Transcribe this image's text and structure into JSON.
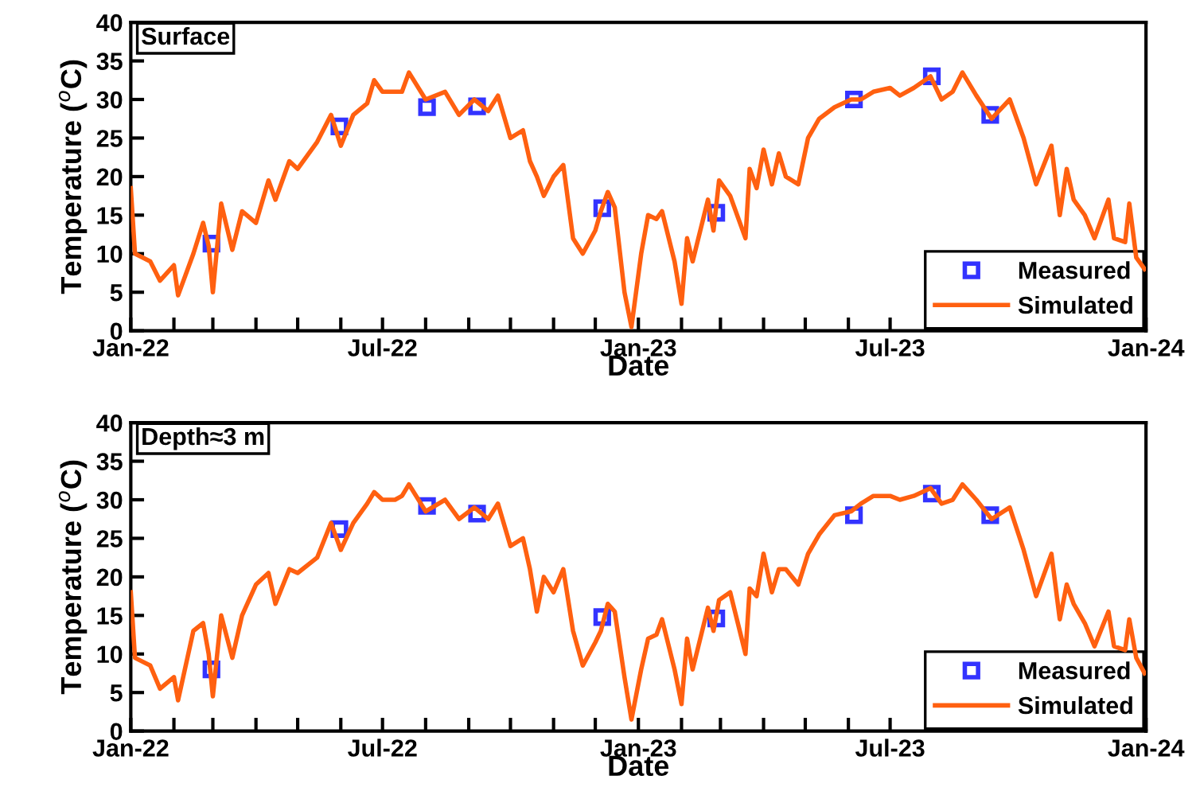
{
  "chart_data": [
    {
      "type": "line",
      "xlabel": "Date",
      "ylabel": "Temperature ($^{o}$C)",
      "annotations": [
        "Surface"
      ],
      "legend": "bottom right",
      "grid": false,
      "xlim": [
        "2022-01-01",
        "2024-01-01"
      ],
      "xticks": [
        {
          "value": "2022-01-01",
          "label": "Jan-22"
        },
        {
          "value": "2022-02-01",
          "label": null
        },
        {
          "value": "2022-03-01",
          "label": null
        },
        {
          "value": "2022-04-01",
          "label": null
        },
        {
          "value": "2022-05-01",
          "label": null
        },
        {
          "value": "2022-06-01",
          "label": null
        },
        {
          "value": "2022-07-01",
          "label": "Jul-22"
        },
        {
          "value": "2022-08-01",
          "label": null
        },
        {
          "value": "2022-09-01",
          "label": null
        },
        {
          "value": "2022-10-01",
          "label": null
        },
        {
          "value": "2022-11-01",
          "label": null
        },
        {
          "value": "2022-12-01",
          "label": null
        },
        {
          "value": "2023-01-01",
          "label": "Jan-23"
        },
        {
          "value": "2023-02-01",
          "label": null
        },
        {
          "value": "2023-03-01",
          "label": null
        },
        {
          "value": "2023-04-01",
          "label": null
        },
        {
          "value": "2023-05-01",
          "label": null
        },
        {
          "value": "2023-06-01",
          "label": null
        },
        {
          "value": "2023-07-01",
          "label": "Jul-23"
        },
        {
          "value": "2023-08-01",
          "label": null
        },
        {
          "value": "2023-09-01",
          "label": null
        },
        {
          "value": "2023-10-01",
          "label": null
        },
        {
          "value": "2023-11-01",
          "label": null
        },
        {
          "value": "2023-12-01",
          "label": null
        },
        {
          "value": "2024-01-01",
          "label": "Jan-24"
        }
      ],
      "ylim": [
        0,
        40
      ],
      "yticks": [
        0,
        5,
        10,
        15,
        20,
        25,
        30,
        35,
        40
      ],
      "series": [
        {
          "name": "Measured",
          "type": "scatter",
          "marker": "square",
          "color": "#3333ff",
          "x": [
            "2022-02-28",
            "2022-05-31",
            "2022-08-02",
            "2022-09-07",
            "2022-12-06",
            "2023-02-26",
            "2023-06-05",
            "2023-07-31",
            "2023-09-11"
          ],
          "values": [
            11.3,
            26.5,
            29.0,
            29.1,
            15.9,
            15.3,
            30.0,
            33.0,
            28.0
          ]
        },
        {
          "name": "Simulated",
          "type": "line",
          "marker": "none",
          "line_style": "solid",
          "color": "#ff6010",
          "x": [
            "2022-01-01",
            "2022-01-04",
            "2022-01-15",
            "2022-01-22",
            "2022-02-01",
            "2022-02-04",
            "2022-02-15",
            "2022-02-22",
            "2022-02-26",
            "2022-03-01",
            "2022-03-07",
            "2022-03-15",
            "2022-03-22",
            "2022-04-01",
            "2022-04-10",
            "2022-04-15",
            "2022-04-25",
            "2022-05-01",
            "2022-05-15",
            "2022-05-25",
            "2022-06-01",
            "2022-06-10",
            "2022-06-20",
            "2022-06-25",
            "2022-07-01",
            "2022-07-10",
            "2022-07-15",
            "2022-07-20",
            "2022-08-01",
            "2022-08-15",
            "2022-08-25",
            "2022-09-05",
            "2022-09-15",
            "2022-09-22",
            "2022-10-01",
            "2022-10-10",
            "2022-10-15",
            "2022-10-20",
            "2022-10-25",
            "2022-11-01",
            "2022-11-08",
            "2022-11-15",
            "2022-11-22",
            "2022-12-01",
            "2022-12-05",
            "2022-12-10",
            "2022-12-15",
            "2022-12-22",
            "2022-12-27",
            "2023-01-03",
            "2023-01-08",
            "2023-01-14",
            "2023-01-18",
            "2023-01-27",
            "2023-02-01",
            "2023-02-05",
            "2023-02-09",
            "2023-02-20",
            "2023-02-24",
            "2023-02-28",
            "2023-03-08",
            "2023-03-19",
            "2023-03-22",
            "2023-03-27",
            "2023-04-01",
            "2023-04-07",
            "2023-04-12",
            "2023-04-17",
            "2023-04-26",
            "2023-05-03",
            "2023-05-11",
            "2023-05-22",
            "2023-06-03",
            "2023-06-10",
            "2023-06-19",
            "2023-07-01",
            "2023-07-08",
            "2023-07-18",
            "2023-07-30",
            "2023-08-07",
            "2023-08-15",
            "2023-08-22",
            "2023-09-01",
            "2023-09-12",
            "2023-09-25",
            "2023-10-05",
            "2023-10-14",
            "2023-10-25",
            "2023-10-31",
            "2023-11-05",
            "2023-11-10",
            "2023-11-18",
            "2023-11-25",
            "2023-12-05",
            "2023-12-09",
            "2023-12-17",
            "2023-12-20",
            "2023-12-25",
            "2023-12-31"
          ],
          "values": [
            18.5,
            10,
            9,
            6.5,
            8.5,
            4.6,
            10,
            14,
            11,
            5,
            16.5,
            10.5,
            15.5,
            14,
            19.5,
            17,
            22,
            21,
            24.5,
            28,
            24,
            28,
            29.5,
            32.5,
            31,
            31,
            31,
            33.5,
            30,
            31,
            28,
            30,
            28.5,
            30.5,
            25,
            26,
            22,
            20,
            17.5,
            20,
            21.5,
            12,
            10,
            13,
            15.5,
            18,
            16,
            5,
            0.5,
            10,
            15,
            14.5,
            15.5,
            9,
            3.5,
            12,
            9,
            17,
            13,
            19.5,
            17.5,
            12,
            21,
            18.5,
            23.5,
            19,
            23,
            20,
            19,
            25,
            27.5,
            29,
            30,
            30,
            31,
            31.5,
            30.5,
            31.5,
            33,
            30,
            31,
            33.5,
            30.5,
            27.5,
            30,
            25,
            19,
            24,
            15,
            21,
            17,
            15,
            12,
            17,
            12,
            11.5,
            16.5,
            9.5,
            8
          ]
        }
      ]
    },
    {
      "type": "line",
      "xlabel": "Date",
      "ylabel": "Temperature ($^{o}$C)",
      "annotations": [
        "Depth≈3 m"
      ],
      "legend": "bottom right",
      "grid": false,
      "xlim": [
        "2022-01-01",
        "2024-01-01"
      ],
      "xticks": [
        {
          "value": "2022-01-01",
          "label": "Jan-22"
        },
        {
          "value": "2022-02-01",
          "label": null
        },
        {
          "value": "2022-03-01",
          "label": null
        },
        {
          "value": "2022-04-01",
          "label": null
        },
        {
          "value": "2022-05-01",
          "label": null
        },
        {
          "value": "2022-06-01",
          "label": null
        },
        {
          "value": "2022-07-01",
          "label": "Jul-22"
        },
        {
          "value": "2022-08-01",
          "label": null
        },
        {
          "value": "2022-09-01",
          "label": null
        },
        {
          "value": "2022-10-01",
          "label": null
        },
        {
          "value": "2022-11-01",
          "label": null
        },
        {
          "value": "2022-12-01",
          "label": null
        },
        {
          "value": "2023-01-01",
          "label": "Jan-23"
        },
        {
          "value": "2023-02-01",
          "label": null
        },
        {
          "value": "2023-03-01",
          "label": null
        },
        {
          "value": "2023-04-01",
          "label": null
        },
        {
          "value": "2023-05-01",
          "label": null
        },
        {
          "value": "2023-06-01",
          "label": null
        },
        {
          "value": "2023-07-01",
          "label": "Jul-23"
        },
        {
          "value": "2023-08-01",
          "label": null
        },
        {
          "value": "2023-09-01",
          "label": null
        },
        {
          "value": "2023-10-01",
          "label": null
        },
        {
          "value": "2023-11-01",
          "label": null
        },
        {
          "value": "2023-12-01",
          "label": null
        },
        {
          "value": "2024-01-01",
          "label": "Jan-24"
        }
      ],
      "ylim": [
        0,
        40
      ],
      "yticks": [
        0,
        5,
        10,
        15,
        20,
        25,
        30,
        35,
        40
      ],
      "series": [
        {
          "name": "Measured",
          "type": "scatter",
          "marker": "square",
          "color": "#3333ff",
          "x": [
            "2022-02-28",
            "2022-05-31",
            "2022-08-02",
            "2022-09-07",
            "2022-12-06",
            "2023-02-26",
            "2023-06-05",
            "2023-07-31",
            "2023-09-11"
          ],
          "values": [
            8.0,
            26.2,
            29.2,
            28.2,
            14.8,
            14.6,
            28.0,
            30.8,
            28.0
          ]
        },
        {
          "name": "Simulated",
          "type": "line",
          "marker": "none",
          "line_style": "solid",
          "color": "#ff6010",
          "x": [
            "2022-01-01",
            "2022-01-04",
            "2022-01-15",
            "2022-01-22",
            "2022-02-01",
            "2022-02-04",
            "2022-02-15",
            "2022-02-22",
            "2022-02-26",
            "2022-03-01",
            "2022-03-07",
            "2022-03-15",
            "2022-03-22",
            "2022-04-01",
            "2022-04-10",
            "2022-04-15",
            "2022-04-25",
            "2022-05-01",
            "2022-05-15",
            "2022-05-25",
            "2022-06-01",
            "2022-06-10",
            "2022-06-20",
            "2022-06-25",
            "2022-07-01",
            "2022-07-10",
            "2022-07-15",
            "2022-07-20",
            "2022-08-01",
            "2022-08-15",
            "2022-08-25",
            "2022-09-05",
            "2022-09-15",
            "2022-09-22",
            "2022-10-01",
            "2022-10-10",
            "2022-10-15",
            "2022-10-20",
            "2022-10-25",
            "2022-11-01",
            "2022-11-08",
            "2022-11-15",
            "2022-11-22",
            "2022-12-01",
            "2022-12-05",
            "2022-12-10",
            "2022-12-15",
            "2022-12-22",
            "2022-12-27",
            "2023-01-03",
            "2023-01-08",
            "2023-01-14",
            "2023-01-18",
            "2023-01-27",
            "2023-02-01",
            "2023-02-05",
            "2023-02-09",
            "2023-02-20",
            "2023-02-24",
            "2023-02-28",
            "2023-03-08",
            "2023-03-19",
            "2023-03-22",
            "2023-03-27",
            "2023-04-01",
            "2023-04-07",
            "2023-04-12",
            "2023-04-17",
            "2023-04-26",
            "2023-05-03",
            "2023-05-11",
            "2023-05-22",
            "2023-06-03",
            "2023-06-10",
            "2023-06-19",
            "2023-07-01",
            "2023-07-08",
            "2023-07-18",
            "2023-07-30",
            "2023-08-07",
            "2023-08-15",
            "2023-08-22",
            "2023-09-01",
            "2023-09-12",
            "2023-09-25",
            "2023-10-05",
            "2023-10-14",
            "2023-10-25",
            "2023-10-31",
            "2023-11-05",
            "2023-11-10",
            "2023-11-18",
            "2023-11-25",
            "2023-12-05",
            "2023-12-09",
            "2023-12-17",
            "2023-12-20",
            "2023-12-25",
            "2023-12-31"
          ],
          "values": [
            18,
            9.5,
            8.5,
            5.5,
            7,
            4,
            13,
            14,
            10,
            4.5,
            15,
            9.5,
            15,
            19,
            20.5,
            16.5,
            21,
            20.5,
            22.5,
            27,
            23.5,
            27,
            29.5,
            31,
            30,
            30,
            30.5,
            32,
            28.5,
            30,
            27.5,
            29,
            27.5,
            29.5,
            24,
            25,
            21,
            15.5,
            20,
            18,
            21,
            13,
            8.5,
            11.5,
            13,
            16.5,
            15.5,
            7,
            1.5,
            8,
            12,
            12.5,
            14.5,
            8,
            3.5,
            12,
            8,
            16,
            13,
            17,
            18,
            10,
            18.5,
            17.5,
            23,
            18,
            21,
            21,
            19,
            23,
            25.5,
            28,
            28.5,
            29.5,
            30.5,
            30.5,
            30,
            30.5,
            31.5,
            29.5,
            30,
            32,
            30,
            27.5,
            29,
            23.5,
            17.5,
            23,
            14.5,
            19,
            16.5,
            14,
            11,
            15.5,
            11,
            10.5,
            14.5,
            9.5,
            7.5
          ]
        }
      ]
    }
  ]
}
